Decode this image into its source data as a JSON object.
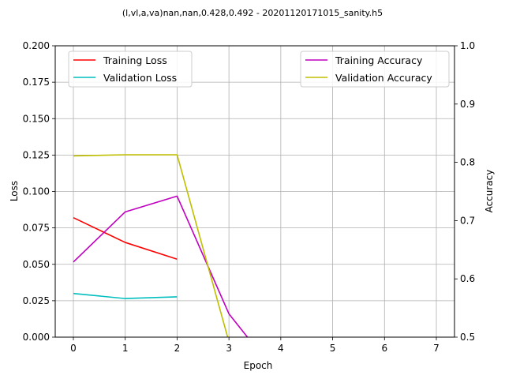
{
  "chart_data": {
    "type": "line",
    "title": "(l,vl,a,va)nan,nan,0.428,0.492 - 20201120171015_sanity.h5",
    "xlabel": "Epoch",
    "ylabel_left": "Loss",
    "ylabel_right": "Accuracy",
    "xlim": [
      -0.35,
      7.35
    ],
    "ylim_left": [
      0.0,
      0.2
    ],
    "ylim_right": [
      0.5,
      1.0
    ],
    "x_ticks": [
      0,
      1,
      2,
      3,
      4,
      5,
      6,
      7
    ],
    "y_ticks_left": [
      0.0,
      0.025,
      0.05,
      0.075,
      0.1,
      0.125,
      0.15,
      0.175,
      0.2
    ],
    "y_ticks_right": [
      0.5,
      0.6,
      0.7,
      0.8,
      0.9,
      1.0
    ],
    "grid": true,
    "legend_left_placement": "top-left",
    "legend_right_placement": "top-right",
    "series_left": [
      {
        "name": "Training Loss",
        "color": "#ff0000",
        "x": [
          0,
          1,
          2
        ],
        "y": [
          0.082,
          0.065,
          0.0535
        ]
      },
      {
        "name": "Validation Loss",
        "color": "#00bfbf",
        "x": [
          0,
          1,
          2
        ],
        "y": [
          0.03,
          0.0265,
          0.0277
        ]
      }
    ],
    "series_right": [
      {
        "name": "Training Accuracy",
        "color": "#bf00bf",
        "x": [
          0,
          1,
          2,
          3,
          4,
          5,
          6,
          7
        ],
        "y": [
          0.629,
          0.715,
          0.742,
          0.54,
          0.428,
          0.428,
          0.428,
          0.428
        ]
      },
      {
        "name": "Validation Accuracy",
        "color": "#bfbf00",
        "x": [
          0,
          1,
          2,
          3,
          4,
          5,
          6,
          7
        ],
        "y": [
          0.811,
          0.813,
          0.813,
          0.492,
          0.492,
          0.492,
          0.492,
          0.492
        ]
      }
    ]
  }
}
